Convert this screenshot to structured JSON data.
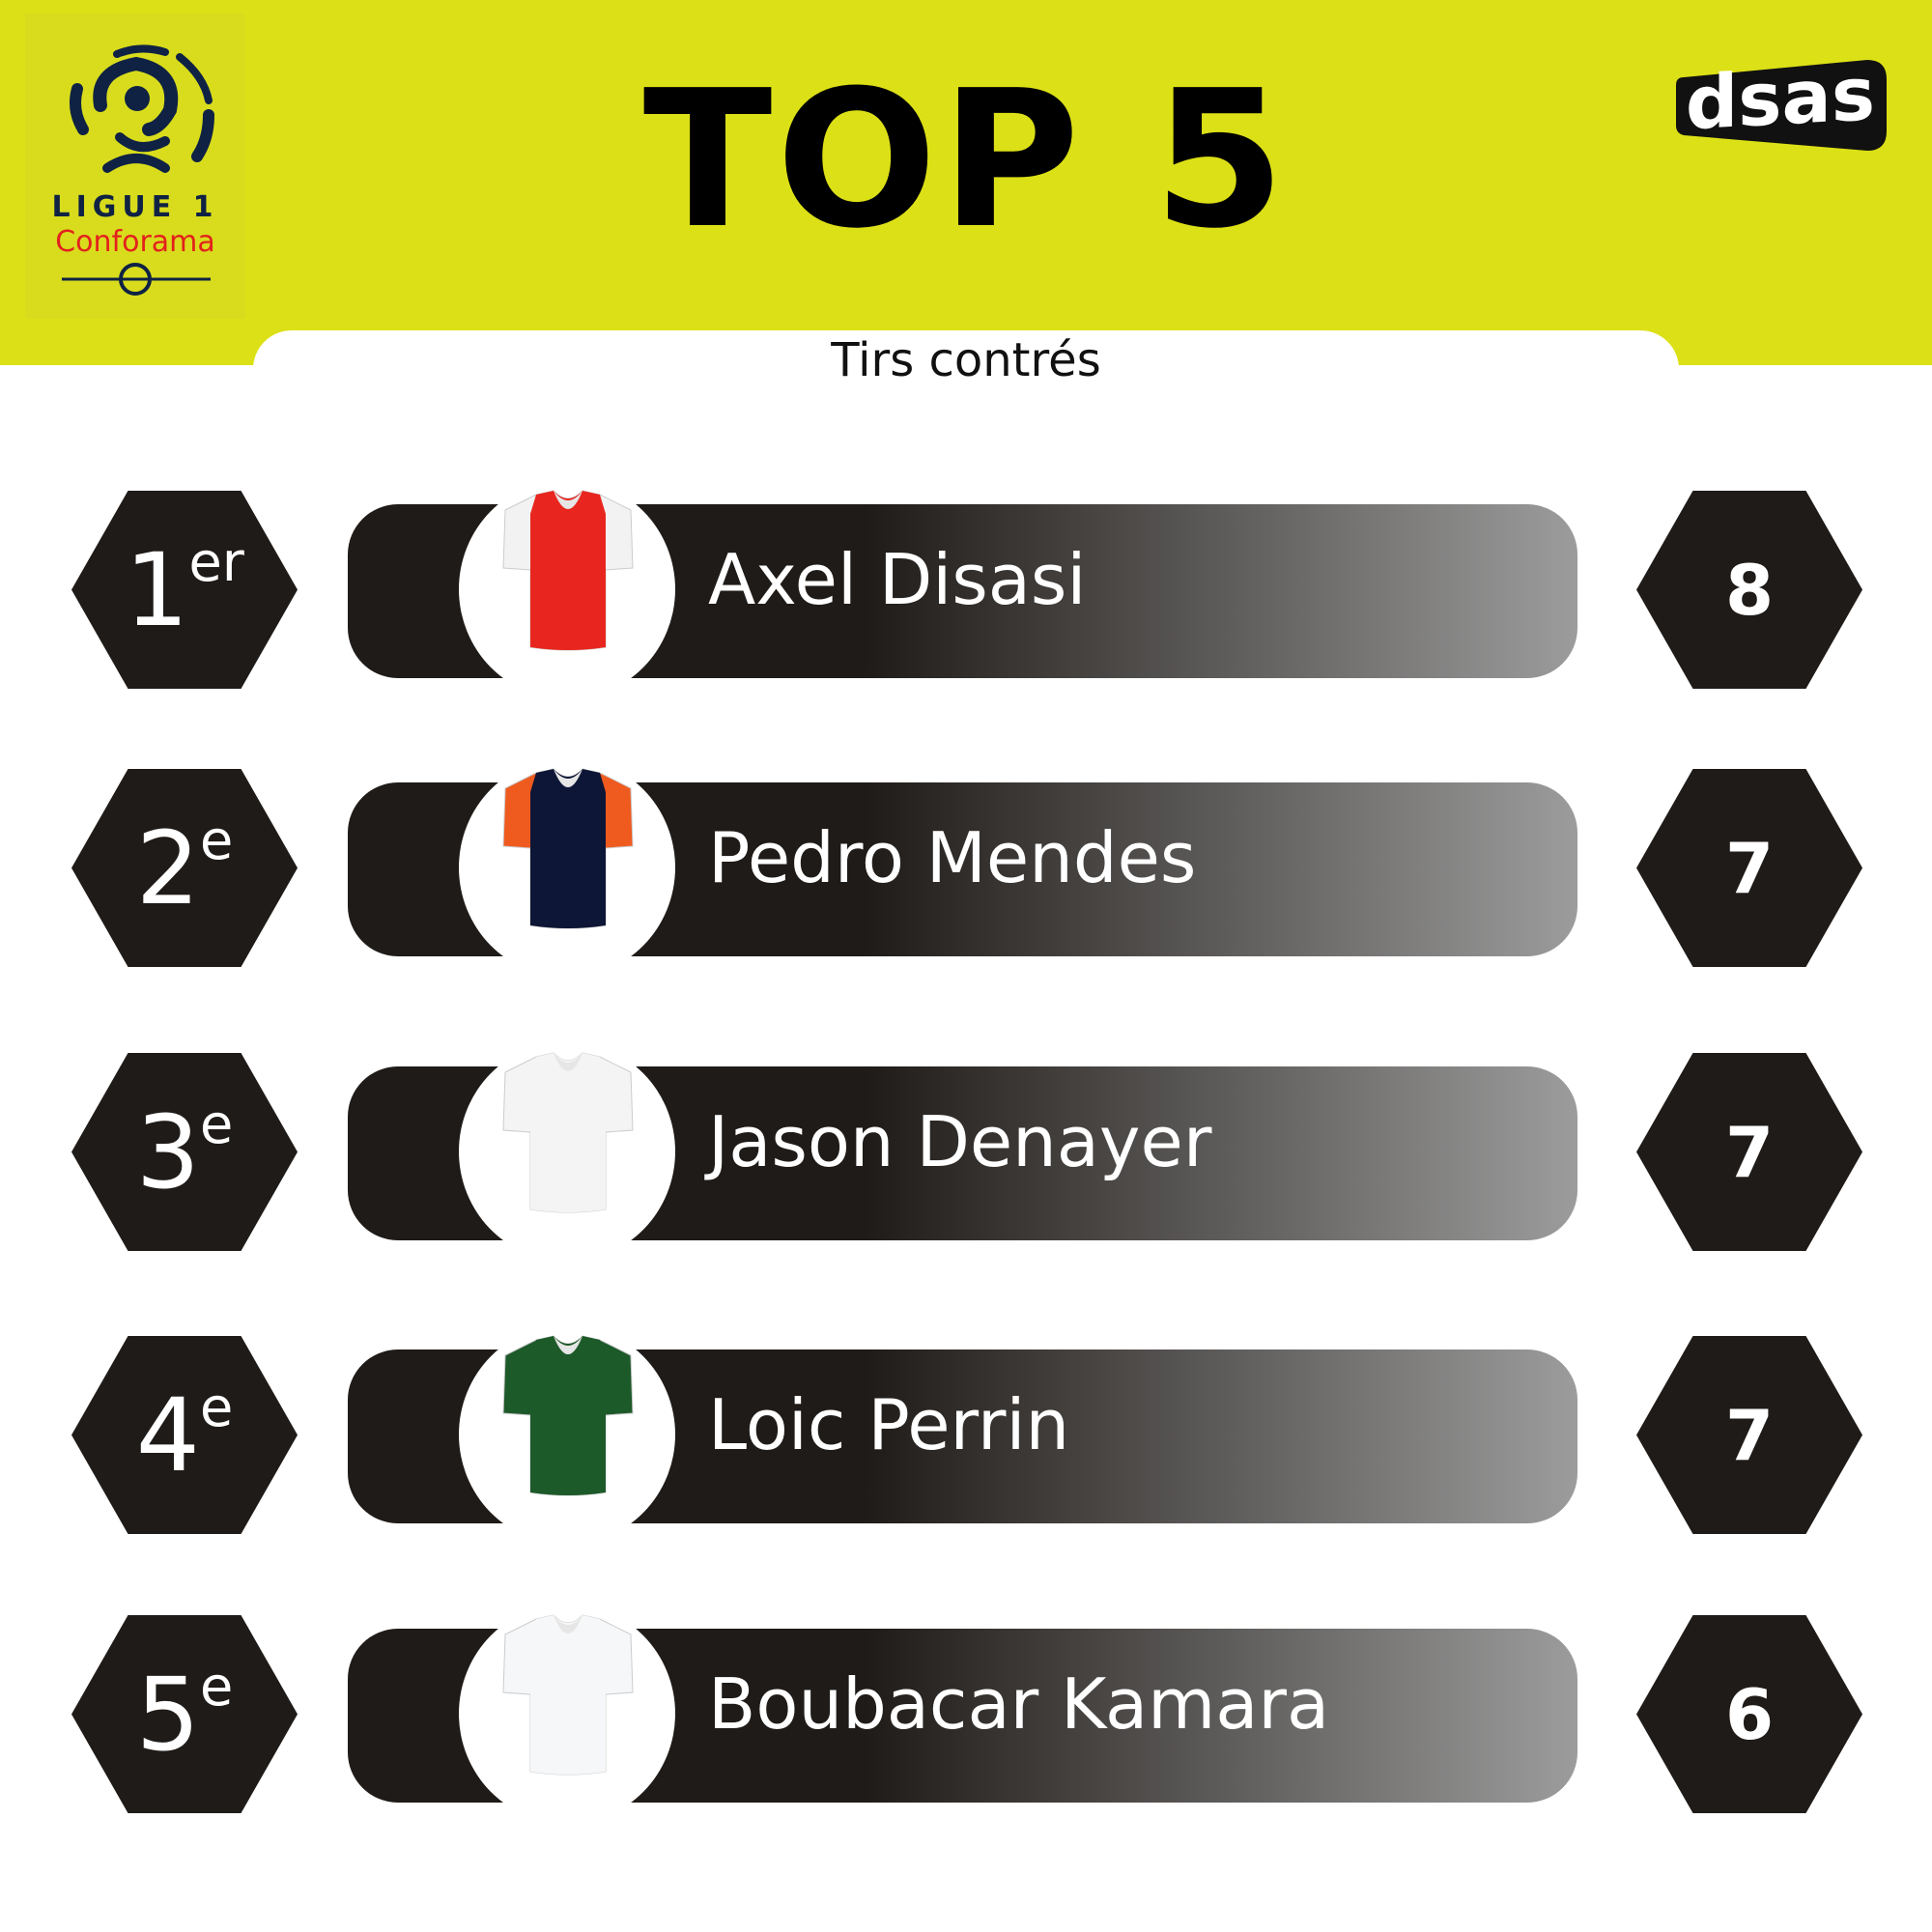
{
  "header": {
    "title": "TOP 5",
    "subtitle": "Tirs contrés",
    "league_logo": {
      "line1": "LIGUE 1",
      "line2": "Conforama"
    },
    "brand_logo": "dsas",
    "background_color": "#dce016"
  },
  "ranking": [
    {
      "rank": "1",
      "suffix": "er",
      "name": "Axel Disasi",
      "value": "8",
      "jersey": {
        "body": "#e8261f",
        "sleeve": "#f2f2f2"
      }
    },
    {
      "rank": "2",
      "suffix": "e",
      "name": "Pedro Mendes",
      "value": "7",
      "jersey": {
        "body": "#0d1636",
        "sleeve": "#ef5a1f"
      }
    },
    {
      "rank": "3",
      "suffix": "e",
      "name": "Jason Denayer",
      "value": "7",
      "jersey": {
        "body": "#f4f4f4",
        "sleeve": "#f4f4f4"
      }
    },
    {
      "rank": "4",
      "suffix": "e",
      "name": "Loic Perrin",
      "value": "7",
      "jersey": {
        "body": "#1d5a2a",
        "sleeve": "#1d5a2a"
      }
    },
    {
      "rank": "5",
      "suffix": "e",
      "name": "Boubacar Kamara",
      "value": "6",
      "jersey": {
        "body": "#f6f7f8",
        "sleeve": "#f6f7f8"
      }
    }
  ]
}
